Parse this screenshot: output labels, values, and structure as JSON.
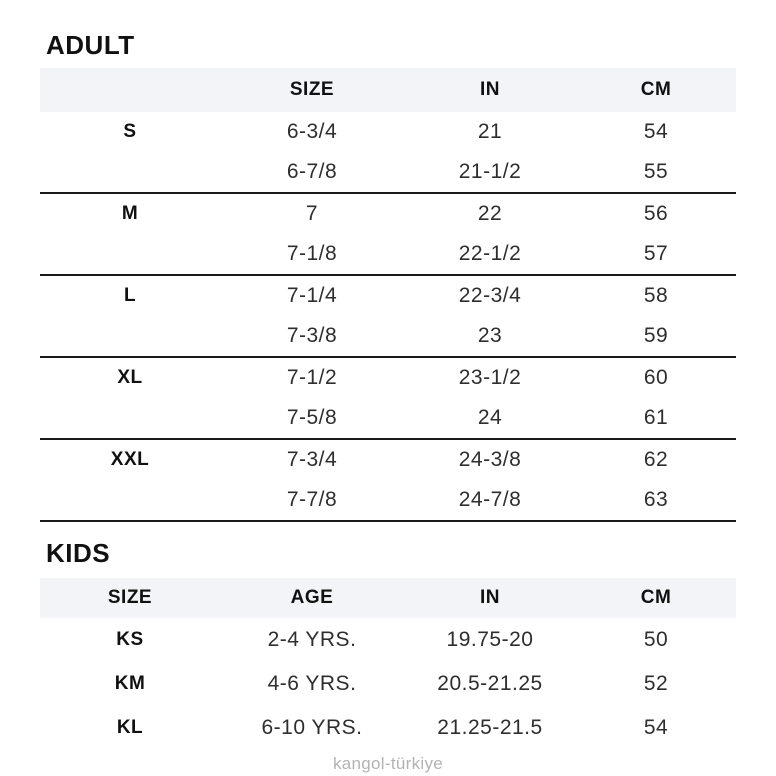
{
  "colors": {
    "header_band": "#f2f4f8",
    "rule": "#1a1a1a",
    "text": "#111111",
    "value_text": "#2e2e2e",
    "footer_gray": "#b3b3b3"
  },
  "adult": {
    "title": "ADULT",
    "headers": {
      "col1": "",
      "col2": "SIZE",
      "col3": "IN",
      "col4": "CM"
    },
    "groups": [
      {
        "label": "S",
        "rows": [
          [
            "6-3/4",
            "21",
            "54"
          ],
          [
            "6-7/8",
            "21-1/2",
            "55"
          ]
        ]
      },
      {
        "label": "M",
        "rows": [
          [
            "7",
            "22",
            "56"
          ],
          [
            "7-1/8",
            "22-1/2",
            "57"
          ]
        ]
      },
      {
        "label": "L",
        "rows": [
          [
            "7-1/4",
            "22-3/4",
            "58"
          ],
          [
            "7-3/8",
            "23",
            "59"
          ]
        ]
      },
      {
        "label": "XL",
        "rows": [
          [
            "7-1/2",
            "23-1/2",
            "60"
          ],
          [
            "7-5/8",
            "24",
            "61"
          ]
        ]
      },
      {
        "label": "XXL",
        "rows": [
          [
            "7-3/4",
            "24-3/8",
            "62"
          ],
          [
            "7-7/8",
            "24-7/8",
            "63"
          ]
        ]
      }
    ]
  },
  "kids": {
    "title": "KIDS",
    "headers": {
      "col1": "SIZE",
      "col2": "AGE",
      "col3": "IN",
      "col4": "CM"
    },
    "rows": [
      {
        "size": "KS",
        "age": "2-4 YRS.",
        "in": "19.75-20",
        "cm": "50"
      },
      {
        "size": "KM",
        "age": "4-6 YRS.",
        "in": "20.5-21.25",
        "cm": "52"
      },
      {
        "size": "KL",
        "age": "6-10 YRS.",
        "in": "21.25-21.5",
        "cm": "54"
      }
    ]
  },
  "page": {
    "footer": "kangol-türkiye"
  }
}
